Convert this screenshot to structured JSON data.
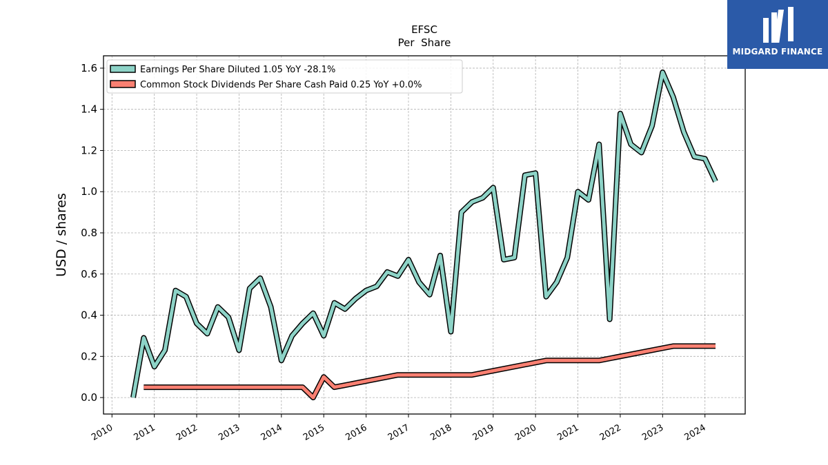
{
  "logo": {
    "text": "MIDGARD FINANCE",
    "background": "#2b5aa8"
  },
  "chart_data": {
    "type": "line",
    "title": "EFSC",
    "subtitle": "Per  Share",
    "ylabel": "USD / shares",
    "xlabel": "",
    "ylim": [
      -0.08,
      1.66
    ],
    "xlim": [
      2009.8,
      2024.95
    ],
    "yticks": [
      0.0,
      0.2,
      0.4,
      0.6,
      0.8,
      1.0,
      1.2,
      1.4,
      1.6
    ],
    "ytick_labels": [
      "0.0",
      "0.2",
      "0.4",
      "0.6",
      "0.8",
      "1.0",
      "1.2",
      "1.4",
      "1.6"
    ],
    "xticks": [
      2010,
      2011,
      2012,
      2013,
      2014,
      2015,
      2016,
      2017,
      2018,
      2019,
      2020,
      2021,
      2022,
      2023,
      2024
    ],
    "xtick_labels": [
      "2010",
      "2011",
      "2012",
      "2013",
      "2014",
      "2015",
      "2016",
      "2017",
      "2018",
      "2019",
      "2020",
      "2021",
      "2022",
      "2023",
      "2024"
    ],
    "grid": true,
    "legend_position": "top-left",
    "series": [
      {
        "name": "Earnings Per Share Diluted  1.05 YoY -28.1%",
        "color": "#8dd3c7",
        "x": [
          2010.5,
          2010.75,
          2011.0,
          2011.25,
          2011.5,
          2011.75,
          2012.0,
          2012.25,
          2012.5,
          2012.75,
          2013.0,
          2013.25,
          2013.5,
          2013.75,
          2014.0,
          2014.25,
          2014.5,
          2014.75,
          2015.0,
          2015.25,
          2015.5,
          2015.75,
          2016.0,
          2016.25,
          2016.5,
          2016.75,
          2017.0,
          2017.25,
          2017.5,
          2017.75,
          2018.0,
          2018.25,
          2018.5,
          2018.75,
          2019.0,
          2019.25,
          2019.5,
          2019.75,
          2020.0,
          2020.25,
          2020.5,
          2020.75,
          2021.0,
          2021.25,
          2021.5,
          2021.75,
          2022.0,
          2022.25,
          2022.5,
          2022.75,
          2023.0,
          2023.25,
          2023.5,
          2023.75,
          2024.0,
          2024.25
        ],
        "y": [
          0.0,
          0.29,
          0.15,
          0.23,
          0.52,
          0.49,
          0.36,
          0.31,
          0.44,
          0.39,
          0.23,
          0.53,
          0.58,
          0.44,
          0.18,
          0.3,
          0.36,
          0.41,
          0.3,
          0.46,
          0.43,
          0.48,
          0.52,
          0.54,
          0.61,
          0.59,
          0.67,
          0.56,
          0.5,
          0.69,
          0.32,
          0.9,
          0.95,
          0.97,
          1.02,
          0.67,
          0.68,
          1.08,
          1.09,
          0.49,
          0.56,
          0.68,
          1.0,
          0.96,
          1.23,
          0.38,
          1.38,
          1.23,
          1.19,
          1.32,
          1.58,
          1.46,
          1.29,
          1.17,
          1.16,
          1.05
        ]
      },
      {
        "name": "Common Stock Dividends Per Share Cash Paid  0.25 YoY +0.0%",
        "color": "#fa8072",
        "x": [
          2010.75,
          2014.5,
          2014.75,
          2015.0,
          2015.25,
          2015.5,
          2015.75,
          2016.0,
          2016.25,
          2016.5,
          2016.75,
          2017.0,
          2017.25,
          2017.5,
          2017.75,
          2018.0,
          2018.25,
          2018.5,
          2020.25,
          2021.5,
          2023.25,
          2024.25
        ],
        "y": [
          0.05,
          0.05,
          0.0,
          0.1,
          0.05,
          0.06,
          0.07,
          0.08,
          0.09,
          0.1,
          0.11,
          0.11,
          0.11,
          0.11,
          0.11,
          0.11,
          0.11,
          0.11,
          0.18,
          0.18,
          0.25,
          0.25
        ]
      }
    ]
  }
}
